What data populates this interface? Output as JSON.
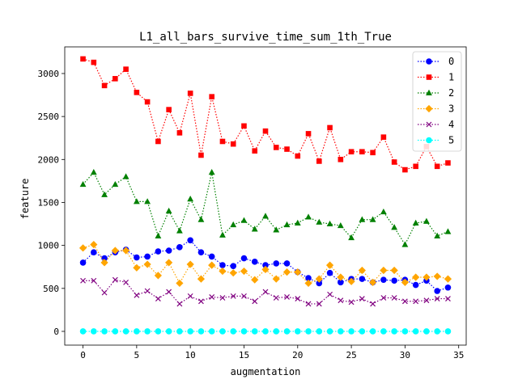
{
  "chart_data": {
    "type": "line",
    "title": "L1_all_bars_survive_time_sum_1th_True",
    "xlabel": "augmentation",
    "ylabel": "feature",
    "xlim": [
      -1.7,
      35.7
    ],
    "ylim": [
      -160,
      3310
    ],
    "xticks": [
      0,
      5,
      10,
      15,
      20,
      25,
      30,
      35
    ],
    "yticks": [
      0,
      500,
      1000,
      1500,
      2000,
      2500,
      3000
    ],
    "x": [
      0,
      1,
      2,
      3,
      4,
      5,
      6,
      7,
      8,
      9,
      10,
      11,
      12,
      13,
      14,
      15,
      16,
      17,
      18,
      19,
      20,
      21,
      22,
      23,
      24,
      25,
      26,
      27,
      28,
      29,
      30,
      31,
      32,
      33,
      34
    ],
    "grid": false,
    "legend_position": "top-right",
    "series": [
      {
        "name": "0",
        "color": "#0000ff",
        "marker": "circle",
        "values": [
          800,
          920,
          850,
          920,
          950,
          860,
          870,
          930,
          940,
          980,
          1060,
          920,
          870,
          770,
          760,
          850,
          810,
          770,
          790,
          790,
          690,
          620,
          560,
          680,
          570,
          610,
          610,
          570,
          600,
          590,
          600,
          540,
          590,
          470,
          510
        ]
      },
      {
        "name": "1",
        "color": "#ff0000",
        "marker": "square",
        "values": [
          3170,
          3130,
          2860,
          2940,
          3050,
          2780,
          2670,
          2210,
          2580,
          2310,
          2770,
          2050,
          2730,
          2210,
          2180,
          2390,
          2100,
          2330,
          2140,
          2120,
          2040,
          2300,
          1980,
          2370,
          2000,
          2090,
          2090,
          2080,
          2260,
          1970,
          1880,
          1920,
          2150,
          1920,
          1960
        ]
      },
      {
        "name": "2",
        "color": "#008000",
        "marker": "triangle",
        "values": [
          1710,
          1850,
          1590,
          1710,
          1800,
          1510,
          1510,
          1110,
          1400,
          1170,
          1540,
          1300,
          1850,
          1120,
          1240,
          1290,
          1190,
          1340,
          1180,
          1240,
          1260,
          1330,
          1270,
          1250,
          1230,
          1090,
          1300,
          1300,
          1390,
          1210,
          1010,
          1260,
          1280,
          1110,
          1160
        ]
      },
      {
        "name": "3",
        "color": "#ffa500",
        "marker": "diamond",
        "values": [
          970,
          1010,
          800,
          940,
          940,
          740,
          780,
          650,
          800,
          560,
          780,
          610,
          770,
          700,
          680,
          700,
          600,
          720,
          610,
          690,
          690,
          560,
          610,
          770,
          630,
          580,
          710,
          570,
          710,
          710,
          570,
          630,
          630,
          640,
          610
        ]
      },
      {
        "name": "4",
        "color": "#800080",
        "marker": "x",
        "values": [
          590,
          590,
          450,
          600,
          570,
          420,
          470,
          380,
          460,
          320,
          410,
          350,
          400,
          390,
          410,
          410,
          350,
          460,
          390,
          400,
          380,
          320,
          320,
          430,
          360,
          340,
          380,
          320,
          390,
          390,
          350,
          350,
          360,
          380,
          380
        ]
      },
      {
        "name": "5",
        "color": "#00ffff",
        "marker": "circle",
        "values": [
          0,
          0,
          0,
          0,
          0,
          0,
          0,
          0,
          0,
          0,
          0,
          0,
          0,
          0,
          0,
          0,
          0,
          0,
          0,
          0,
          0,
          0,
          0,
          0,
          0,
          0,
          0,
          0,
          0,
          0,
          0,
          0,
          0,
          0,
          0
        ]
      }
    ]
  }
}
